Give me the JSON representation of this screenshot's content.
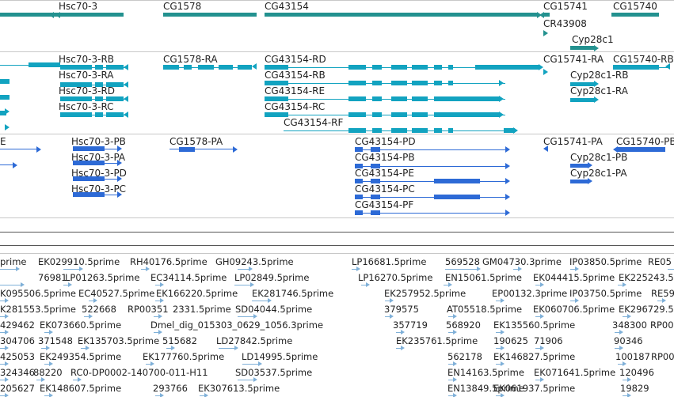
{
  "colors": {
    "gene": "#23918f",
    "transcript": "#12a3c0",
    "protein": "#2d6ad6",
    "est": "#7fb0d8",
    "separator": "#c8c8c8"
  },
  "genes": [
    "Hsc70-3",
    "CG1578",
    "CG43154",
    "CG15741",
    "CG15740",
    "CR43908",
    "Cyp28c1"
  ],
  "transcripts": [
    "Hsc70-3-RB",
    "Hsc70-3-RA",
    "Hsc70-3-RD",
    "Hsc70-3-RC",
    "CG1578-RA",
    "CG43154-RD",
    "CG43154-RB",
    "CG43154-RE",
    "CG43154-RC",
    "CG43154-RF",
    "CG15741-RA",
    "CG15740-RB",
    "Cyp28c1-RB",
    "Cyp28c1-RA"
  ],
  "proteins": [
    "E",
    "Hsc70-3-PB",
    "Hsc70-3-PA",
    "Hsc70-3-PD",
    "Hsc70-3-PC",
    "CG1578-PA",
    "CG43154-PD",
    "CG43154-PB",
    "CG43154-PE",
    "CG43154-PC",
    "CG43154-PF",
    "CG15741-PA",
    "CG15740-PB",
    "Cyp28c1-PB",
    "Cyp28c1-PA"
  ],
  "ests": [
    "prime",
    "EK029910.5prime",
    "RH40176.5prime",
    "GH09243.5prime",
    "LP16681.5prime",
    "569528",
    "GM04730.3prime",
    "IP03850.5prime",
    "RE05",
    "76981",
    "LP01263.5prime",
    "EC34114.5prime",
    "LP02849.5prime",
    "LP16270.5prime",
    "EN15061.5prime",
    "EK044415.5prime",
    "EK225243.5prime",
    "K095506.5prime",
    "EC40527.5prime",
    "EK166220.5prime",
    "EK281746.5prime",
    "EK257952.5prime",
    "EP00132.3prime",
    "IP03750.5prime",
    "RE59",
    "K281553.5prime",
    "522668",
    "RP00351",
    "2331.5prime",
    "SD04044.5prime",
    "379575",
    "AT05518.5prime",
    "EK060706.5prime",
    "EK296729.5",
    "429462",
    "EK073660.5prime",
    "Dmel_dig_015303_0629_1056.3prime",
    "357719",
    "568920",
    "EK135560.5prime",
    "348300",
    "RP00",
    "304706",
    "371548",
    "EK135703.5prime",
    "515682",
    "LD27842.5prime",
    "EK235761.5prime",
    "190625",
    "71906",
    "90346",
    "425053",
    "EK249354.5prime",
    "EK177760.5prime",
    "LD14995.5prime",
    "562178",
    "EK146827.5prime",
    "100187",
    "RP00",
    "324346",
    "88220",
    "RC0-DP0002-140700-011-H11",
    "SD03537.5prime",
    "EN14163.5prime",
    "EK071641.5prime",
    "120496",
    "205627",
    "EK148607.5prime",
    "293766",
    "EK307613.5prime",
    "EN13849.5prime",
    "EK061937.5prime",
    "19829"
  ]
}
